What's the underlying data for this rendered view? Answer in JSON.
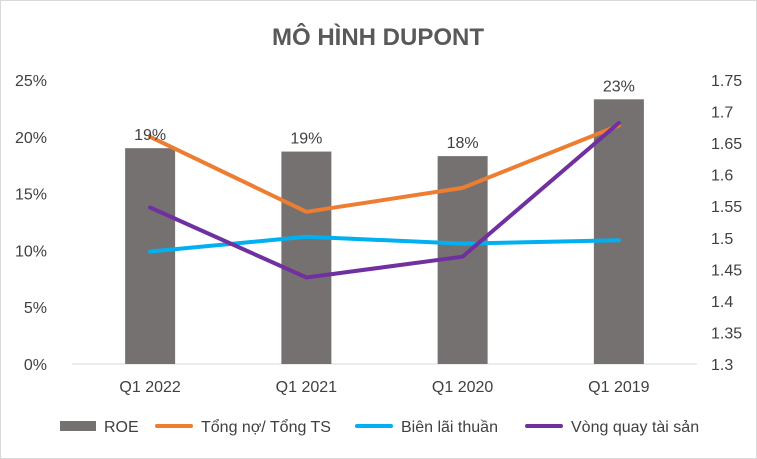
{
  "chart_data": {
    "type": "bar",
    "title": "MÔ HÌNH DUPONT",
    "categories": [
      "Q1 2022",
      "Q1 2021",
      "Q1 2020",
      "Q1 2019"
    ],
    "bar_series": {
      "name": "ROE",
      "color": "#767171",
      "values": [
        0.19,
        0.187,
        0.183,
        0.233
      ],
      "data_labels": [
        "19%",
        "19%",
        "18%",
        "23%"
      ]
    },
    "line_series": [
      {
        "name": "Tổng nợ/ Tổng TS",
        "axis": "left",
        "color": "#ED7D31",
        "values": [
          0.2,
          0.134,
          0.155,
          0.21
        ]
      },
      {
        "name": "Biên lãi thuần",
        "axis": "left",
        "color": "#00B0F0",
        "values": [
          0.099,
          0.112,
          0.106,
          0.109
        ]
      },
      {
        "name": "Vòng quay tài sản",
        "axis": "right",
        "color": "#7030A0",
        "values": [
          1.548,
          1.437,
          1.47,
          1.682
        ]
      }
    ],
    "left_axis": {
      "min": 0,
      "max": 0.25,
      "ticks": [
        0,
        0.05,
        0.1,
        0.15,
        0.2,
        0.25
      ],
      "tick_labels": [
        "0%",
        "5%",
        "10%",
        "15%",
        "20%",
        "25%"
      ]
    },
    "right_axis": {
      "min": 1.3,
      "max": 1.75,
      "ticks": [
        1.3,
        1.35,
        1.4,
        1.45,
        1.5,
        1.55,
        1.6,
        1.65,
        1.7,
        1.75
      ],
      "tick_labels": [
        "1.3",
        "1.35",
        "1.4",
        "1.45",
        "1.5",
        "1.55",
        "1.6",
        "1.65",
        "1.7",
        "1.75"
      ]
    },
    "legend": {
      "position": "bottom",
      "items": [
        "ROE",
        "Tổng nợ/ Tổng TS",
        "Biên lãi thuần",
        "Vòng quay tài sản"
      ]
    },
    "gridlines": false,
    "axis_color": "#d9d9d9"
  }
}
